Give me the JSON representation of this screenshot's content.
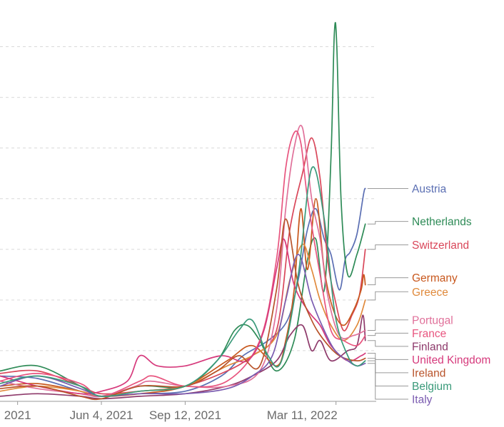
{
  "chart_data": {
    "type": "line",
    "title": "",
    "xlabel": "",
    "ylabel": "",
    "grid": true,
    "x_ticks": [
      {
        "label": "2021",
        "date": "2021-02-24"
      },
      {
        "label": "Jun 4, 2021",
        "date": "2021-06-04"
      },
      {
        "label": "Sep 12, 2021",
        "date": "2021-09-12"
      },
      {
        "label": "Mar 11, 2022",
        "date": "2022-03-11"
      }
    ],
    "x_range": [
      "2021-02-03",
      "2022-04-28"
    ],
    "y_gridlines": [
      1,
      2,
      3,
      4,
      5,
      6,
      7
    ],
    "ylim": [
      0,
      7.5
    ],
    "series": [
      {
        "name": "Austria",
        "color": "#5b6fb3",
        "points": [
          [
            "2021-02-03",
            0.5
          ],
          [
            "2021-03-20",
            0.45
          ],
          [
            "2021-05-10",
            0.2
          ],
          [
            "2021-06-04",
            0.1
          ],
          [
            "2021-07-20",
            0.15
          ],
          [
            "2021-09-12",
            0.2
          ],
          [
            "2021-10-25",
            0.5
          ],
          [
            "2021-11-20",
            0.9
          ],
          [
            "2021-12-20",
            1.2
          ],
          [
            "2022-01-12",
            1.6
          ],
          [
            "2022-01-25",
            2.4
          ],
          [
            "2022-02-05",
            3.4
          ],
          [
            "2022-02-15",
            3.8
          ],
          [
            "2022-02-25",
            3.2
          ],
          [
            "2022-03-05",
            2.9
          ],
          [
            "2022-03-15",
            2.2
          ],
          [
            "2022-03-22",
            2.8
          ],
          [
            "2022-03-28",
            2.95
          ],
          [
            "2022-04-05",
            3.3
          ],
          [
            "2022-04-13",
            4.1
          ],
          [
            "2022-04-15",
            4.2
          ]
        ]
      },
      {
        "name": "Netherlands",
        "color": "#2e8b57",
        "points": [
          [
            "2021-02-03",
            0.6
          ],
          [
            "2021-03-20",
            0.7
          ],
          [
            "2021-05-10",
            0.3
          ],
          [
            "2021-06-04",
            0.1
          ],
          [
            "2021-07-20",
            0.3
          ],
          [
            "2021-09-12",
            0.3
          ],
          [
            "2021-10-20",
            0.8
          ],
          [
            "2021-11-10",
            1.4
          ],
          [
            "2021-11-25",
            1.5
          ],
          [
            "2021-12-10",
            1.2
          ],
          [
            "2021-12-30",
            0.6
          ],
          [
            "2022-01-20",
            1.2
          ],
          [
            "2022-02-05",
            2.8
          ],
          [
            "2022-02-15",
            3.2
          ],
          [
            "2022-02-25",
            2.2
          ],
          [
            "2022-03-05",
            4.8
          ],
          [
            "2022-03-09",
            7.25
          ],
          [
            "2022-03-12",
            7.0
          ],
          [
            "2022-03-17",
            4.0
          ],
          [
            "2022-03-25",
            2.5
          ],
          [
            "2022-04-05",
            2.9
          ],
          [
            "2022-04-15",
            3.5
          ]
        ]
      },
      {
        "name": "Switzerland",
        "color": "#d9475a",
        "points": [
          [
            "2021-02-03",
            0.55
          ],
          [
            "2021-03-20",
            0.6
          ],
          [
            "2021-05-10",
            0.3
          ],
          [
            "2021-06-04",
            0.15
          ],
          [
            "2021-07-20",
            0.2
          ],
          [
            "2021-09-12",
            0.3
          ],
          [
            "2021-11-01",
            0.6
          ],
          [
            "2021-12-01",
            0.9
          ],
          [
            "2021-12-30",
            1.4
          ],
          [
            "2022-01-15",
            3.4
          ],
          [
            "2022-01-30",
            4.5
          ],
          [
            "2022-02-10",
            5.2
          ],
          [
            "2022-02-20",
            4.4
          ],
          [
            "2022-03-01",
            2.8
          ],
          [
            "2022-03-10",
            2.0
          ],
          [
            "2022-03-20",
            1.4
          ],
          [
            "2022-03-30",
            1.7
          ],
          [
            "2022-04-08",
            2.1
          ],
          [
            "2022-04-15",
            3.0
          ]
        ]
      },
      {
        "name": "Germany",
        "color": "#c8581e",
        "points": [
          [
            "2021-02-03",
            0.3
          ],
          [
            "2021-03-20",
            0.35
          ],
          [
            "2021-05-10",
            0.2
          ],
          [
            "2021-06-04",
            0.1
          ],
          [
            "2021-07-20",
            0.15
          ],
          [
            "2021-09-12",
            0.3
          ],
          [
            "2021-11-01",
            0.8
          ],
          [
            "2021-12-01",
            1.1
          ],
          [
            "2021-12-30",
            0.7
          ],
          [
            "2022-01-10",
            1.2
          ],
          [
            "2022-01-20",
            2.2
          ],
          [
            "2022-01-28",
            3.8
          ],
          [
            "2022-02-05",
            2.6
          ],
          [
            "2022-02-15",
            4.0
          ],
          [
            "2022-02-25",
            2.6
          ],
          [
            "2022-03-08",
            1.8
          ],
          [
            "2022-03-20",
            1.5
          ],
          [
            "2022-04-01",
            1.8
          ],
          [
            "2022-04-10",
            2.2
          ],
          [
            "2022-04-13",
            2.5
          ],
          [
            "2022-04-15",
            2.3
          ]
        ]
      },
      {
        "name": "Greece",
        "color": "#e08a3c",
        "points": [
          [
            "2021-02-03",
            0.2
          ],
          [
            "2021-03-20",
            0.3
          ],
          [
            "2021-05-10",
            0.2
          ],
          [
            "2021-06-04",
            0.1
          ],
          [
            "2021-07-20",
            0.2
          ],
          [
            "2021-09-12",
            0.3
          ],
          [
            "2021-11-01",
            0.7
          ],
          [
            "2021-12-01",
            0.9
          ],
          [
            "2021-12-30",
            1.3
          ],
          [
            "2022-01-15",
            2.4
          ],
          [
            "2022-01-30",
            3.1
          ],
          [
            "2022-02-10",
            2.6
          ],
          [
            "2022-02-20",
            2.0
          ],
          [
            "2022-03-05",
            1.5
          ],
          [
            "2022-03-20",
            1.2
          ],
          [
            "2022-04-05",
            1.5
          ],
          [
            "2022-04-15",
            2.0
          ]
        ]
      },
      {
        "name": "Finland",
        "color": "#8e3a6b",
        "points": [
          [
            "2021-02-03",
            0.1
          ],
          [
            "2021-03-20",
            0.15
          ],
          [
            "2021-05-10",
            0.1
          ],
          [
            "2021-06-04",
            0.05
          ],
          [
            "2021-07-20",
            0.1
          ],
          [
            "2021-09-12",
            0.15
          ],
          [
            "2021-11-01",
            0.3
          ],
          [
            "2021-12-01",
            0.5
          ],
          [
            "2021-12-30",
            0.8
          ],
          [
            "2022-01-15",
            1.3
          ],
          [
            "2022-01-30",
            1.5
          ],
          [
            "2022-02-10",
            1.0
          ],
          [
            "2022-02-20",
            1.2
          ],
          [
            "2022-03-05",
            0.8
          ],
          [
            "2022-03-25",
            1.0
          ],
          [
            "2022-04-05",
            1.1
          ],
          [
            "2022-04-12",
            1.7
          ],
          [
            "2022-04-15",
            1.2
          ]
        ]
      },
      {
        "name": "Portugal",
        "color": "#e0719a",
        "points": [
          [
            "2021-02-03",
            0.4
          ],
          [
            "2021-03-20",
            0.25
          ],
          [
            "2021-05-10",
            0.15
          ],
          [
            "2021-06-04",
            0.1
          ],
          [
            "2021-07-15",
            0.3
          ],
          [
            "2021-08-01",
            0.4
          ],
          [
            "2021-09-12",
            0.3
          ],
          [
            "2021-11-01",
            0.3
          ],
          [
            "2021-12-10",
            0.6
          ],
          [
            "2021-12-30",
            1.8
          ],
          [
            "2022-01-10",
            3.8
          ],
          [
            "2022-01-20",
            5.0
          ],
          [
            "2022-01-30",
            5.4
          ],
          [
            "2022-02-10",
            4.0
          ],
          [
            "2022-02-20",
            3.2
          ],
          [
            "2022-03-01",
            2.1
          ],
          [
            "2022-03-15",
            1.3
          ],
          [
            "2022-04-01",
            1.3
          ],
          [
            "2022-04-15",
            1.4
          ]
        ]
      },
      {
        "name": "France",
        "color": "#e8557f",
        "points": [
          [
            "2021-02-03",
            0.4
          ],
          [
            "2021-03-20",
            0.55
          ],
          [
            "2021-05-10",
            0.35
          ],
          [
            "2021-06-04",
            0.1
          ],
          [
            "2021-07-20",
            0.4
          ],
          [
            "2021-08-05",
            0.5
          ],
          [
            "2021-09-12",
            0.3
          ],
          [
            "2021-11-01",
            0.4
          ],
          [
            "2021-12-10",
            1.2
          ],
          [
            "2021-12-30",
            2.8
          ],
          [
            "2022-01-10",
            4.6
          ],
          [
            "2022-01-20",
            5.3
          ],
          [
            "2022-01-28",
            5.1
          ],
          [
            "2022-02-05",
            4.0
          ],
          [
            "2022-02-20",
            2.5
          ],
          [
            "2022-03-05",
            1.4
          ],
          [
            "2022-03-20",
            1.2
          ],
          [
            "2022-04-05",
            1.1
          ],
          [
            "2022-04-15",
            1.3
          ]
        ]
      },
      {
        "name": "United Kingdom",
        "color": "#d63a7c",
        "points": [
          [
            "2021-02-03",
            0.5
          ],
          [
            "2021-03-20",
            0.3
          ],
          [
            "2021-05-10",
            0.15
          ],
          [
            "2021-06-04",
            0.2
          ],
          [
            "2021-07-05",
            0.4
          ],
          [
            "2021-07-20",
            0.9
          ],
          [
            "2021-08-10",
            0.7
          ],
          [
            "2021-09-12",
            0.7
          ],
          [
            "2021-10-25",
            0.9
          ],
          [
            "2021-11-25",
            0.8
          ],
          [
            "2021-12-15",
            1.4
          ],
          [
            "2021-12-30",
            2.6
          ],
          [
            "2022-01-08",
            3.2
          ],
          [
            "2022-01-20",
            2.3
          ],
          [
            "2022-02-05",
            1.8
          ],
          [
            "2022-02-20",
            1.5
          ],
          [
            "2022-03-05",
            1.1
          ],
          [
            "2022-03-25",
            0.8
          ],
          [
            "2022-04-10",
            0.9
          ],
          [
            "2022-04-15",
            0.95
          ]
        ]
      },
      {
        "name": "Ireland",
        "color": "#b8532a",
        "points": [
          [
            "2021-02-03",
            0.25
          ],
          [
            "2021-03-20",
            0.3
          ],
          [
            "2021-05-10",
            0.1
          ],
          [
            "2021-06-04",
            0.05
          ],
          [
            "2021-07-20",
            0.3
          ],
          [
            "2021-09-12",
            0.3
          ],
          [
            "2021-10-20",
            0.6
          ],
          [
            "2021-11-15",
            0.9
          ],
          [
            "2021-12-10",
            0.7
          ],
          [
            "2021-12-30",
            2.2
          ],
          [
            "2022-01-10",
            3.6
          ],
          [
            "2022-01-25",
            2.3
          ],
          [
            "2022-02-10",
            1.6
          ],
          [
            "2022-02-25",
            1.2
          ],
          [
            "2022-03-15",
            0.9
          ],
          [
            "2022-04-05",
            0.8
          ],
          [
            "2022-04-15",
            0.85
          ]
        ]
      },
      {
        "name": "Italy",
        "color": "#7a5bb0",
        "points": [
          [
            "2021-02-03",
            0.3
          ],
          [
            "2021-03-20",
            0.5
          ],
          [
            "2021-05-10",
            0.25
          ],
          [
            "2021-06-04",
            0.1
          ],
          [
            "2021-07-20",
            0.15
          ],
          [
            "2021-09-12",
            0.15
          ],
          [
            "2021-11-01",
            0.25
          ],
          [
            "2021-12-01",
            0.5
          ],
          [
            "2021-12-25",
            0.9
          ],
          [
            "2022-01-10",
            2.0
          ],
          [
            "2022-01-25",
            2.9
          ],
          [
            "2022-02-10",
            2.0
          ],
          [
            "2022-02-25",
            1.4
          ],
          [
            "2022-03-10",
            1.0
          ],
          [
            "2022-03-25",
            0.8
          ],
          [
            "2022-04-05",
            0.7
          ],
          [
            "2022-04-15",
            0.75
          ]
        ]
      },
      {
        "name": "Belgium",
        "color": "#3a9a7a",
        "points": [
          [
            "2021-02-03",
            0.35
          ],
          [
            "2021-03-20",
            0.5
          ],
          [
            "2021-05-10",
            0.3
          ],
          [
            "2021-06-04",
            0.1
          ],
          [
            "2021-07-20",
            0.2
          ],
          [
            "2021-09-12",
            0.3
          ],
          [
            "2021-10-20",
            0.8
          ],
          [
            "2021-11-15",
            1.4
          ],
          [
            "2021-12-01",
            1.6
          ],
          [
            "2021-12-20",
            0.9
          ],
          [
            "2022-01-05",
            0.8
          ],
          [
            "2022-01-25",
            2.5
          ],
          [
            "2022-02-10",
            4.6
          ],
          [
            "2022-02-25",
            3.6
          ],
          [
            "2022-03-10",
            1.7
          ],
          [
            "2022-03-25",
            0.9
          ],
          [
            "2022-04-05",
            0.7
          ],
          [
            "2022-04-15",
            0.8
          ]
        ]
      }
    ]
  }
}
